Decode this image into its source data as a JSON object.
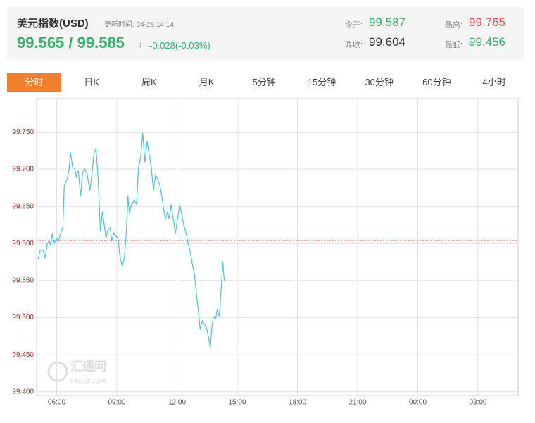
{
  "header": {
    "title": "美元指数(USD)",
    "update_time": "更新时间: 04-28 14:14",
    "price": "99.565 / 99.585",
    "arrow": "↓",
    "change": "-0.028(-0.03%)",
    "stats": [
      {
        "label": "今开:",
        "value": 99.587
      },
      {
        "label": "昨收:",
        "value": 99.604
      },
      {
        "label": "最高:",
        "value": 99.765
      },
      {
        "label": "最低:",
        "value": 99.456
      }
    ]
  },
  "tabs": [
    "分时",
    "日K",
    "周K",
    "月K",
    "5分钟",
    "15分钟",
    "30分钟",
    "60分钟",
    "4小时"
  ],
  "watermark": {
    "name": "汇通网",
    "site": "FX678.COM"
  },
  "chart_data": {
    "type": "line",
    "color": "#4fc1d9",
    "reference_color": "#e0504c",
    "grid": true,
    "x": [
      5.07,
      5.18,
      5.32,
      5.42,
      5.53,
      5.64,
      5.71,
      5.78,
      5.88,
      5.99,
      6.09,
      6.2,
      6.31,
      6.38,
      6.52,
      6.62,
      6.69,
      6.8,
      6.91,
      6.98,
      7.08,
      7.19,
      7.29,
      7.4,
      7.51,
      7.65,
      7.75,
      7.86,
      7.96,
      8.07,
      8.18,
      8.28,
      8.46,
      8.56,
      8.67,
      8.74,
      8.85,
      8.95,
      9.06,
      9.16,
      9.27,
      9.38,
      9.48,
      9.55,
      9.62,
      9.73,
      9.8,
      9.87,
      9.98,
      10.08,
      10.19,
      10.29,
      10.4,
      10.51,
      10.61,
      10.72,
      10.82,
      10.93,
      11.04,
      11.14,
      11.25,
      11.32,
      11.42,
      11.53,
      11.6,
      11.71,
      11.81,
      11.92,
      12.02,
      12.13,
      12.24,
      12.34,
      12.45,
      12.55,
      12.66,
      12.76,
      12.87,
      12.98,
      13.08,
      13.15,
      13.26,
      13.36,
      13.47,
      13.58,
      13.65,
      13.75,
      13.82,
      13.93,
      14.0,
      14.11,
      14.21,
      14.28,
      14.35
    ],
    "values": [
      99.578,
      99.591,
      99.591,
      99.58,
      99.6,
      99.603,
      99.597,
      99.613,
      99.6,
      99.607,
      99.603,
      99.614,
      99.622,
      99.678,
      99.686,
      99.7,
      99.722,
      99.702,
      99.7,
      99.69,
      99.698,
      99.664,
      99.695,
      99.7,
      99.695,
      99.671,
      99.692,
      99.721,
      99.728,
      99.686,
      99.616,
      99.643,
      99.607,
      99.619,
      99.621,
      99.603,
      99.614,
      99.61,
      99.607,
      99.581,
      99.569,
      99.581,
      99.619,
      99.664,
      99.641,
      99.652,
      99.654,
      99.659,
      99.652,
      99.702,
      99.717,
      99.749,
      99.709,
      99.738,
      99.719,
      99.702,
      99.671,
      99.692,
      99.686,
      99.679,
      99.662,
      99.648,
      99.633,
      99.643,
      99.633,
      99.652,
      99.633,
      99.613,
      99.633,
      99.652,
      99.638,
      99.624,
      99.614,
      99.6,
      99.588,
      99.572,
      99.558,
      99.529,
      99.505,
      99.484,
      99.496,
      99.491,
      99.486,
      99.472,
      99.459,
      99.491,
      99.501,
      99.499,
      99.51,
      99.502,
      99.543,
      99.575,
      99.55
    ],
    "xlim": [
      5,
      29
    ],
    "xticks": [
      {
        "value": 6,
        "label": "06:00"
      },
      {
        "value": 9,
        "label": "09:00"
      },
      {
        "value": 12,
        "label": "12:00"
      },
      {
        "value": 15,
        "label": "15:00"
      },
      {
        "value": 18,
        "label": "18:00"
      },
      {
        "value": 21,
        "label": "21:00"
      },
      {
        "value": 24,
        "label": "00:00"
      },
      {
        "value": 27,
        "label": "03:00"
      }
    ],
    "ylim": [
      99.395,
      99.795
    ],
    "yticks": [
      {
        "value": 99.4,
        "label": "99.400"
      },
      {
        "value": 99.45,
        "label": "99.450"
      },
      {
        "value": 99.5,
        "label": "99.500"
      },
      {
        "value": 99.55,
        "label": "99.550"
      },
      {
        "value": 99.6,
        "label": "99.600"
      },
      {
        "value": 99.65,
        "label": "99.650"
      },
      {
        "value": 99.7,
        "label": "99.700"
      },
      {
        "value": 99.75,
        "label": "99.750"
      }
    ]
  }
}
